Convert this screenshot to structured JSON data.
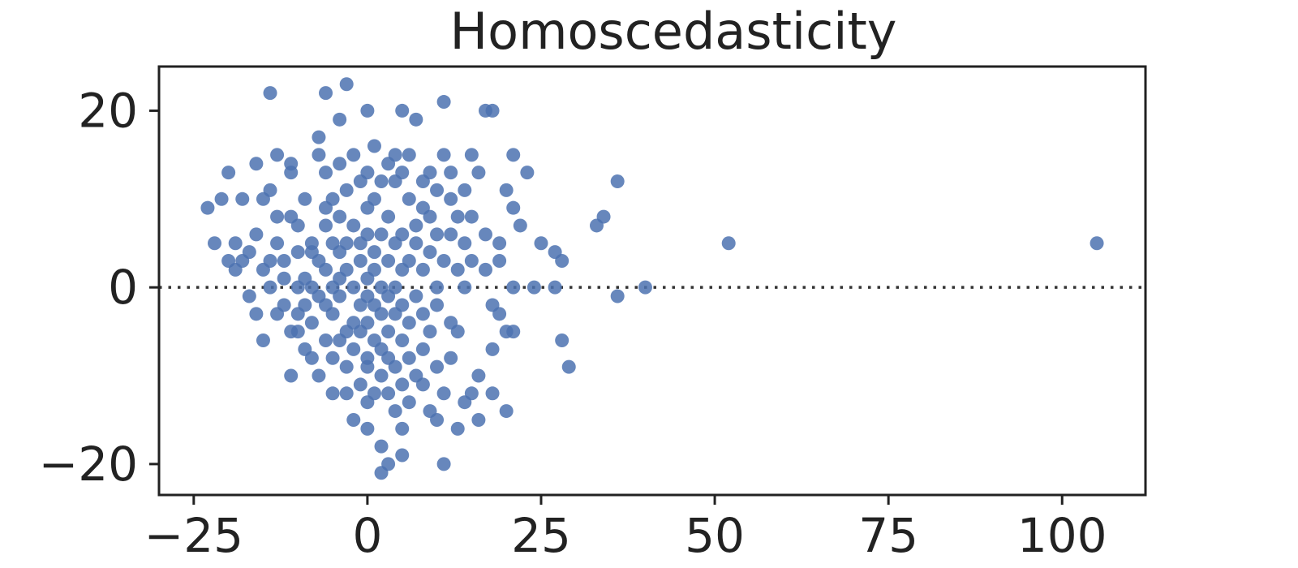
{
  "chart_data": {
    "type": "scatter",
    "title": "Homoscedasticity",
    "xlabel": "",
    "ylabel": "",
    "xlim": [
      -30,
      112
    ],
    "ylim": [
      -23.5,
      25
    ],
    "xticks": [
      -25,
      0,
      25,
      50,
      75,
      100
    ],
    "xtick_labels": [
      "−25",
      "0",
      "25",
      "50",
      "75",
      "100"
    ],
    "yticks": [
      -20,
      0,
      20
    ],
    "ytick_labels": [
      "−20",
      "0",
      "20"
    ],
    "grid": false,
    "reference_line": {
      "y": 0,
      "style": "dotted"
    },
    "colors": {
      "points": "#4c72b0",
      "axes": "#222222",
      "reference_line": "#333333"
    },
    "points": [
      [
        -23,
        9
      ],
      [
        -22,
        5
      ],
      [
        -21,
        10
      ],
      [
        -20,
        13
      ],
      [
        -19,
        2
      ],
      [
        -20,
        3
      ],
      [
        -19,
        5
      ],
      [
        -18,
        10
      ],
      [
        -18,
        3
      ],
      [
        -17,
        4
      ],
      [
        -17,
        -1
      ],
      [
        -16,
        -3
      ],
      [
        -16,
        14
      ],
      [
        -16,
        6
      ],
      [
        -15,
        10
      ],
      [
        -15,
        2
      ],
      [
        -15,
        -6
      ],
      [
        -14,
        11
      ],
      [
        -14,
        0
      ],
      [
        -14,
        3
      ],
      [
        -13,
        5
      ],
      [
        -13,
        8
      ],
      [
        -13,
        -3
      ],
      [
        -13,
        15
      ],
      [
        -14,
        22
      ],
      [
        -12,
        1
      ],
      [
        -12,
        -2
      ],
      [
        -12,
        3
      ],
      [
        -11,
        8
      ],
      [
        -11,
        -5
      ],
      [
        -11,
        13
      ],
      [
        -11,
        14
      ],
      [
        -11,
        -10
      ],
      [
        -10,
        0
      ],
      [
        -10,
        -3
      ],
      [
        -10,
        7
      ],
      [
        -10,
        -5
      ],
      [
        -10,
        4
      ],
      [
        -9,
        1
      ],
      [
        -9,
        -7
      ],
      [
        -9,
        10
      ],
      [
        -9,
        -2
      ],
      [
        -8,
        4
      ],
      [
        -8,
        5
      ],
      [
        -8,
        -8
      ],
      [
        -8,
        0
      ],
      [
        -8,
        -4
      ],
      [
        -7,
        17
      ],
      [
        -7,
        15
      ],
      [
        -7,
        -1
      ],
      [
        -7,
        3
      ],
      [
        -7,
        -10
      ],
      [
        -6,
        -6
      ],
      [
        -6,
        7
      ],
      [
        -6,
        9
      ],
      [
        -6,
        2
      ],
      [
        -6,
        -2
      ],
      [
        -6,
        13
      ],
      [
        -6,
        22
      ],
      [
        -5,
        -12
      ],
      [
        -5,
        10
      ],
      [
        -5,
        -3
      ],
      [
        -5,
        5
      ],
      [
        -5,
        0
      ],
      [
        -5,
        -8
      ],
      [
        -4,
        19
      ],
      [
        -4,
        4
      ],
      [
        -4,
        -6
      ],
      [
        -4,
        1
      ],
      [
        -4,
        8
      ],
      [
        -4,
        14
      ],
      [
        -4,
        -1
      ],
      [
        -3,
        11
      ],
      [
        -3,
        -5
      ],
      [
        -3,
        5
      ],
      [
        -3,
        -9
      ],
      [
        -3,
        -12
      ],
      [
        -3,
        2
      ],
      [
        -3,
        23
      ],
      [
        -2,
        -4
      ],
      [
        -2,
        7
      ],
      [
        -2,
        -7
      ],
      [
        -2,
        0
      ],
      [
        -2,
        -15
      ],
      [
        -2,
        15
      ],
      [
        -1,
        5
      ],
      [
        -1,
        -2
      ],
      [
        -1,
        -11
      ],
      [
        -1,
        12
      ],
      [
        -1,
        -5
      ],
      [
        -1,
        3
      ],
      [
        0,
        -8
      ],
      [
        0,
        6
      ],
      [
        0,
        -1
      ],
      [
        0,
        -13
      ],
      [
        0,
        9
      ],
      [
        0,
        -4
      ],
      [
        0,
        1
      ],
      [
        0,
        13
      ],
      [
        0,
        -9
      ],
      [
        0,
        -16
      ],
      [
        0,
        20
      ],
      [
        1,
        4
      ],
      [
        1,
        -6
      ],
      [
        1,
        10
      ],
      [
        1,
        -12
      ],
      [
        1,
        2
      ],
      [
        1,
        -2
      ],
      [
        1,
        16
      ],
      [
        2,
        -7
      ],
      [
        2,
        6
      ],
      [
        2,
        -3
      ],
      [
        2,
        12
      ],
      [
        2,
        -10
      ],
      [
        2,
        0
      ],
      [
        2,
        -18
      ],
      [
        2,
        -21
      ],
      [
        3,
        8
      ],
      [
        3,
        -5
      ],
      [
        3,
        3
      ],
      [
        3,
        -12
      ],
      [
        3,
        14
      ],
      [
        3,
        -1
      ],
      [
        3,
        -8
      ],
      [
        3,
        -20
      ],
      [
        4,
        5
      ],
      [
        4,
        -3
      ],
      [
        4,
        12
      ],
      [
        4,
        -14
      ],
      [
        4,
        0
      ],
      [
        4,
        -9
      ],
      [
        4,
        15
      ],
      [
        5,
        6
      ],
      [
        5,
        -6
      ],
      [
        5,
        -11
      ],
      [
        5,
        2
      ],
      [
        5,
        13
      ],
      [
        5,
        -2
      ],
      [
        5,
        -16
      ],
      [
        5,
        20
      ],
      [
        5,
        -19
      ],
      [
        6,
        3
      ],
      [
        6,
        -8
      ],
      [
        6,
        10
      ],
      [
        6,
        -4
      ],
      [
        6,
        -13
      ],
      [
        6,
        15
      ],
      [
        7,
        7
      ],
      [
        7,
        -1
      ],
      [
        7,
        -10
      ],
      [
        7,
        5
      ],
      [
        7,
        19
      ],
      [
        8,
        -7
      ],
      [
        8,
        12
      ],
      [
        8,
        2
      ],
      [
        8,
        -3
      ],
      [
        8,
        -11
      ],
      [
        8,
        9
      ],
      [
        9,
        4
      ],
      [
        9,
        -5
      ],
      [
        9,
        13
      ],
      [
        9,
        -14
      ],
      [
        9,
        8
      ],
      [
        10,
        0
      ],
      [
        10,
        -9
      ],
      [
        10,
        11
      ],
      [
        10,
        -2
      ],
      [
        10,
        6
      ],
      [
        10,
        -15
      ],
      [
        11,
        15
      ],
      [
        11,
        -12
      ],
      [
        11,
        3
      ],
      [
        11,
        -20
      ],
      [
        11,
        21
      ],
      [
        12,
        -4
      ],
      [
        12,
        10
      ],
      [
        12,
        6
      ],
      [
        12,
        -8
      ],
      [
        12,
        13
      ],
      [
        13,
        -16
      ],
      [
        13,
        2
      ],
      [
        13,
        8
      ],
      [
        13,
        -5
      ],
      [
        14,
        11
      ],
      [
        14,
        -13
      ],
      [
        14,
        5
      ],
      [
        14,
        0
      ],
      [
        15,
        -12
      ],
      [
        15,
        15
      ],
      [
        15,
        8
      ],
      [
        15,
        3
      ],
      [
        16,
        -10
      ],
      [
        16,
        13
      ],
      [
        16,
        -15
      ],
      [
        17,
        20
      ],
      [
        17,
        6
      ],
      [
        17,
        2
      ],
      [
        18,
        -2
      ],
      [
        18,
        -7
      ],
      [
        18,
        -12
      ],
      [
        18,
        20
      ],
      [
        19,
        5
      ],
      [
        19,
        -3
      ],
      [
        19,
        3
      ],
      [
        20,
        11
      ],
      [
        20,
        -5
      ],
      [
        20,
        -14
      ],
      [
        21,
        -5
      ],
      [
        21,
        9
      ],
      [
        21,
        0
      ],
      [
        21,
        15
      ],
      [
        22,
        7
      ],
      [
        23,
        13
      ],
      [
        24,
        0
      ],
      [
        25,
        5
      ],
      [
        27,
        4
      ],
      [
        27,
        0
      ],
      [
        28,
        -6
      ],
      [
        28,
        3
      ],
      [
        29,
        -9
      ],
      [
        33,
        7
      ],
      [
        34,
        8
      ],
      [
        36,
        -1
      ],
      [
        36,
        12
      ],
      [
        40,
        0
      ],
      [
        52,
        5
      ],
      [
        105,
        5
      ]
    ]
  }
}
